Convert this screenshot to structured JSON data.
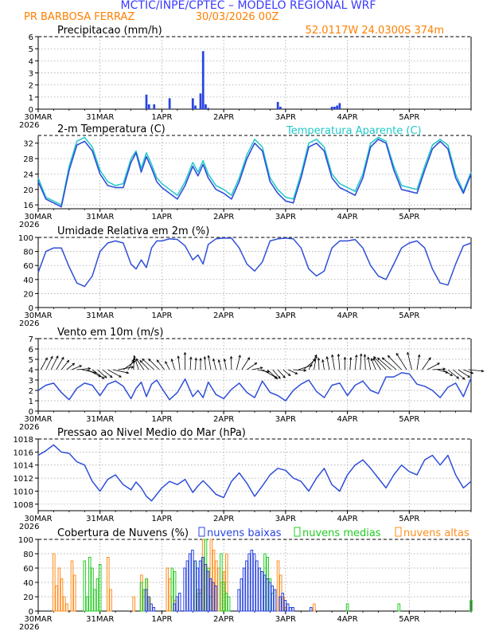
{
  "header": {
    "line1": "MCTIC/INPE/CPTEC – MODELO REGIONAL WRF",
    "location": "PR BARBOSA FERRAZ",
    "run": "30/03/2026 00Z",
    "coords": "52.0117W 24.0300S 374m"
  },
  "colors": {
    "title": "#3a3aff",
    "orange": "#ff7f00",
    "series": "#2f4fd8",
    "cyan": "#22c8c8",
    "bar": "#2a44e0",
    "low": "#2a44e0",
    "mid": "#22cc22",
    "high": "#ff8c1a",
    "arrow": "#000000",
    "grid": "#9a9a9a"
  },
  "time_axis": {
    "year": "2026",
    "ticks": [
      {
        "label": "30MAR",
        "hour": 0
      },
      {
        "label": "31MAR",
        "hour": 24
      },
      {
        "label": "1APR",
        "hour": 48
      },
      {
        "label": "2APR",
        "hour": 72
      },
      {
        "label": "3APR",
        "hour": 96
      },
      {
        "label": "4APR",
        "hour": 120
      },
      {
        "label": "5APR",
        "hour": 144
      }
    ]
  },
  "chart_data": [
    {
      "type": "bar",
      "title": "Precipitacao (mm/h)",
      "ylim": [
        0,
        6
      ],
      "yticks": [
        0,
        1,
        2,
        3,
        4,
        5,
        6
      ],
      "x": [
        42,
        43,
        45,
        51,
        60,
        61,
        63,
        64,
        65,
        66,
        93,
        94,
        114,
        115,
        116,
        117
      ],
      "values": [
        1.2,
        0.4,
        0.4,
        0.9,
        0.9,
        0.3,
        1.3,
        4.8,
        0.4,
        0.1,
        0.6,
        0.2,
        0.2,
        0.2,
        0.3,
        0.5
      ]
    },
    {
      "type": "line",
      "title": "2-m Temperatura (C)",
      "legend": "Temperatura Aparente (C)",
      "ylim": [
        15,
        34
      ],
      "yticks": [
        16,
        20,
        24,
        28,
        32
      ],
      "series": [
        {
          "name": "2-m Temperatura (C)",
          "x": [
            0,
            3,
            6,
            9,
            12,
            15,
            18,
            21,
            24,
            27,
            30,
            33,
            36,
            38,
            40,
            42,
            44,
            46,
            48,
            51,
            54,
            57,
            60,
            62,
            64,
            66,
            69,
            72,
            75,
            78,
            81,
            84,
            87,
            90,
            93,
            96,
            99,
            102,
            105,
            108,
            111,
            114,
            117,
            120,
            123,
            126,
            129,
            132,
            135,
            138,
            141,
            144,
            147,
            150,
            153,
            156,
            159,
            162,
            165,
            168
          ],
          "values": [
            22,
            17.5,
            16.5,
            15.5,
            25,
            31.5,
            32.5,
            30,
            24,
            21,
            20.5,
            20.5,
            27,
            29.5,
            24.5,
            28.5,
            25.5,
            22,
            20.5,
            19,
            17.5,
            21,
            26,
            23.5,
            26.5,
            23,
            20,
            19,
            17.5,
            22,
            28,
            32,
            30,
            22,
            19,
            17,
            16.5,
            23,
            31,
            32,
            30,
            23,
            20.5,
            19.5,
            18.5,
            23,
            31,
            33,
            32,
            25,
            20,
            19.5,
            19,
            25,
            30.5,
            32.5,
            30.5,
            23,
            19,
            24
          ]
        },
        {
          "name": "Temperatura Aparente (C)",
          "x": [
            0,
            3,
            6,
            9,
            12,
            15,
            18,
            21,
            24,
            27,
            30,
            33,
            36,
            38,
            40,
            42,
            44,
            46,
            48,
            51,
            54,
            57,
            60,
            62,
            64,
            66,
            69,
            72,
            75,
            78,
            81,
            84,
            87,
            90,
            93,
            96,
            99,
            102,
            105,
            108,
            111,
            114,
            117,
            120,
            123,
            126,
            129,
            132,
            135,
            138,
            141,
            144,
            147,
            150,
            153,
            156,
            159,
            162,
            165,
            168
          ],
          "values": [
            23,
            18,
            17,
            16,
            26,
            32.5,
            33.5,
            31,
            25,
            22,
            21,
            21.5,
            28,
            30,
            25.5,
            29.5,
            26.5,
            23,
            21.5,
            20,
            18.5,
            22,
            27,
            24.5,
            27.5,
            24,
            21,
            20,
            18.5,
            23,
            29,
            33,
            31,
            23,
            20,
            18,
            17.5,
            24,
            32,
            33,
            31,
            24,
            21.5,
            20.5,
            19.5,
            24,
            32,
            33.5,
            32.5,
            26,
            21,
            20.5,
            20,
            26,
            31.5,
            33,
            31.5,
            24,
            19.5,
            24.5
          ]
        }
      ]
    },
    {
      "type": "line",
      "title": "Umidade Relativa em 2m (%)",
      "ylim": [
        0,
        100
      ],
      "yticks": [
        0,
        20,
        40,
        60,
        80,
        100
      ],
      "series": [
        {
          "name": "Umidade Relativa em 2m (%)",
          "x": [
            0,
            3,
            6,
            9,
            12,
            15,
            18,
            21,
            24,
            27,
            30,
            33,
            36,
            38,
            40,
            42,
            44,
            46,
            48,
            51,
            54,
            57,
            60,
            62,
            64,
            66,
            69,
            72,
            75,
            78,
            81,
            84,
            87,
            90,
            93,
            96,
            99,
            102,
            105,
            108,
            111,
            114,
            117,
            120,
            123,
            126,
            129,
            132,
            135,
            138,
            141,
            144,
            147,
            150,
            153,
            156,
            159,
            162,
            165,
            168
          ],
          "values": [
            50,
            80,
            85,
            85,
            58,
            35,
            30,
            45,
            80,
            92,
            95,
            92,
            62,
            55,
            68,
            57,
            85,
            95,
            95,
            98,
            97,
            88,
            68,
            75,
            62,
            90,
            98,
            99,
            99,
            85,
            62,
            52,
            65,
            95,
            98,
            99,
            98,
            85,
            55,
            45,
            52,
            85,
            95,
            95,
            97,
            85,
            60,
            45,
            40,
            62,
            85,
            92,
            95,
            85,
            55,
            35,
            32,
            62,
            88,
            92
          ]
        }
      ]
    },
    {
      "type": "line",
      "title": "Vento em 10m (m/s)",
      "ylim": [
        0,
        7
      ],
      "yticks": [
        0,
        1,
        2,
        3,
        4,
        5,
        6,
        7
      ],
      "arrows_y": 4,
      "series": [
        {
          "name": "Vento em 10m (m/s)",
          "x": [
            0,
            3,
            6,
            9,
            12,
            15,
            18,
            21,
            24,
            27,
            30,
            33,
            36,
            38,
            40,
            42,
            44,
            46,
            48,
            51,
            54,
            57,
            60,
            62,
            64,
            66,
            69,
            72,
            75,
            78,
            81,
            84,
            87,
            90,
            93,
            96,
            99,
            102,
            105,
            108,
            111,
            114,
            117,
            120,
            123,
            126,
            129,
            132,
            135,
            138,
            141,
            144,
            147,
            150,
            153,
            156,
            159,
            162,
            165,
            168
          ],
          "values": [
            2,
            2.5,
            2.7,
            1.8,
            1.1,
            2.2,
            2.7,
            2.5,
            1.5,
            2.6,
            2.9,
            2.4,
            1.2,
            2.2,
            2.8,
            1.4,
            2.6,
            3.0,
            2.2,
            1.1,
            1.8,
            3.1,
            1.4,
            2.0,
            1.3,
            2.8,
            1.6,
            1.2,
            2.1,
            2.7,
            1.8,
            1.3,
            2.9,
            1.8,
            1.5,
            1.0,
            2.0,
            2.6,
            3.0,
            1.9,
            1.3,
            2.5,
            2.7,
            1.5,
            2.5,
            2.9,
            2.0,
            1.7,
            3.3,
            3.3,
            3.7,
            3.6,
            2.6,
            2.4,
            2.0,
            1.3,
            2.3,
            2.7,
            1.4,
            3.2
          ]
        }
      ]
    },
    {
      "type": "line",
      "title": "Pressao ao Nivel Medio do Mar (hPa)",
      "ylim": [
        1007,
        1018
      ],
      "yticks": [
        1008,
        1010,
        1012,
        1014,
        1016,
        1018
      ],
      "series": [
        {
          "name": "Pressao ao Nivel Medio do Mar (hPa)",
          "x": [
            0,
            3,
            6,
            9,
            12,
            15,
            18,
            21,
            24,
            27,
            30,
            33,
            36,
            38,
            40,
            42,
            44,
            46,
            48,
            51,
            54,
            57,
            60,
            62,
            64,
            66,
            69,
            72,
            75,
            78,
            81,
            84,
            87,
            90,
            93,
            96,
            99,
            102,
            105,
            108,
            111,
            114,
            117,
            120,
            123,
            126,
            129,
            132,
            135,
            138,
            141,
            144,
            147,
            150,
            153,
            156,
            159,
            162,
            165,
            168
          ],
          "values": [
            1015.5,
            1016.2,
            1017.1,
            1016.0,
            1015.8,
            1014.5,
            1014.0,
            1011.5,
            1010.0,
            1011.8,
            1012.5,
            1011.0,
            1010.2,
            1011.4,
            1010.5,
            1009.2,
            1008.5,
            1009.5,
            1010.5,
            1011.5,
            1011.0,
            1011.8,
            1009.8,
            1010.8,
            1011.6,
            1010.8,
            1009.5,
            1009.0,
            1011.5,
            1012.8,
            1011.2,
            1009.2,
            1010.8,
            1012.5,
            1013.5,
            1013.2,
            1012.0,
            1011.5,
            1010.0,
            1012.0,
            1013.5,
            1011.0,
            1010.0,
            1012.5,
            1014.0,
            1014.8,
            1013.5,
            1012.0,
            1010.5,
            1012.5,
            1014.0,
            1013.0,
            1012.5,
            1014.8,
            1015.5,
            1014.0,
            1015.5,
            1012.5,
            1010.5,
            1011.5
          ]
        }
      ]
    },
    {
      "type": "bar",
      "title": "Cobertura de Nuvens (%)",
      "ylim": [
        0,
        100
      ],
      "yticks": [
        0,
        20,
        40,
        60,
        80,
        100
      ],
      "legend": [
        "nuvens baixas",
        "nuvens medias",
        "nuvens altas"
      ],
      "series": [
        {
          "name": "nuvens baixas",
          "x": [
            42,
            43,
            44,
            45,
            53,
            54,
            55,
            57,
            58,
            59,
            60,
            61,
            62,
            63,
            64,
            65,
            66,
            67,
            68,
            69,
            78,
            79,
            80,
            81,
            82,
            83,
            84,
            85,
            86,
            87,
            88,
            89,
            90,
            91,
            92,
            94,
            95,
            96,
            97,
            98,
            99,
            106
          ],
          "values": [
            30,
            20,
            10,
            5,
            10,
            20,
            25,
            60,
            70,
            80,
            85,
            70,
            60,
            70,
            75,
            65,
            55,
            45,
            40,
            35,
            30,
            45,
            60,
            70,
            80,
            85,
            80,
            70,
            60,
            55,
            50,
            45,
            40,
            35,
            30,
            20,
            25,
            15,
            10,
            5,
            5,
            5
          ]
        },
        {
          "name": "nuvens medias",
          "x": [
            18,
            19,
            20,
            21,
            22,
            23,
            24,
            40,
            41,
            42,
            43,
            52,
            53,
            61,
            62,
            63,
            64,
            65,
            66,
            67,
            71,
            72,
            73,
            74,
            88,
            89,
            90,
            91,
            120,
            140,
            168
          ],
          "values": [
            70,
            20,
            75,
            60,
            30,
            45,
            65,
            40,
            30,
            45,
            20,
            60,
            55,
            70,
            30,
            25,
            75,
            100,
            60,
            20,
            80,
            40,
            25,
            20,
            80,
            75,
            45,
            25,
            10,
            10,
            15
          ]
        },
        {
          "name": "nuvens altas",
          "x": [
            6,
            7,
            8,
            9,
            10,
            11,
            13,
            14,
            27,
            28,
            37,
            40,
            41,
            42,
            43,
            50,
            51,
            52,
            53,
            62,
            63,
            64,
            65,
            66,
            67,
            68,
            69,
            70,
            71,
            72,
            73,
            93,
            94,
            95,
            96,
            107
          ],
          "values": [
            80,
            35,
            60,
            45,
            20,
            10,
            70,
            50,
            75,
            30,
            20,
            50,
            30,
            45,
            20,
            60,
            45,
            20,
            15,
            25,
            30,
            100,
            65,
            60,
            100,
            85,
            70,
            60,
            40,
            55,
            80,
            70,
            50,
            20,
            5,
            10
          ]
        }
      ]
    }
  ]
}
